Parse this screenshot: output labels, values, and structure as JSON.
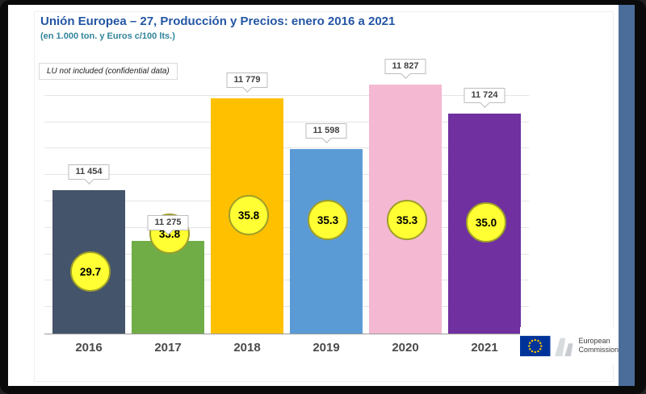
{
  "slide": {
    "title": "Unión Europea – 27, Producción y Precios: enero 2016 a 2021",
    "subtitle": "(en 1.000 ton. y Euros c/100 lts.)",
    "note": "LU not included (confidential data)"
  },
  "chart_data": {
    "type": "bar",
    "title": "Unión Europea – 27, Producción y Precios: enero 2016 a 2021",
    "subtitle": "(en 1.000 ton. y Euros c/100 lts.)",
    "annotation": "LU not included (confidential data)",
    "categories": [
      "2016",
      "2017",
      "2018",
      "2019",
      "2020",
      "2021"
    ],
    "series": [
      {
        "name": "produccion_1000_ton",
        "values": [
          11454,
          11275,
          11779,
          11598,
          11827,
          11724
        ],
        "labels": [
          "11 454",
          "11 275",
          "11 779",
          "11 598",
          "11 827",
          "11 724"
        ]
      },
      {
        "name": "precios_euros_100lts",
        "values": [
          29.7,
          33.8,
          35.8,
          35.3,
          35.3,
          35.0
        ],
        "labels": [
          "29.7",
          "33.8",
          "35.8",
          "35.3",
          "35.3",
          "35.0"
        ]
      }
    ],
    "bar_colors": [
      "#44546a",
      "#70ad47",
      "#ffc000",
      "#5b9bd5",
      "#f4b8d3",
      "#7030a0"
    ],
    "marker_color": "#ffff33",
    "ylim": [
      10950,
      11880
    ],
    "y2lim": [
      23.2,
      51.7
    ],
    "grid": true,
    "legend": "none"
  },
  "footer": {
    "logo_line1": "European",
    "logo_line2": "Commission"
  }
}
